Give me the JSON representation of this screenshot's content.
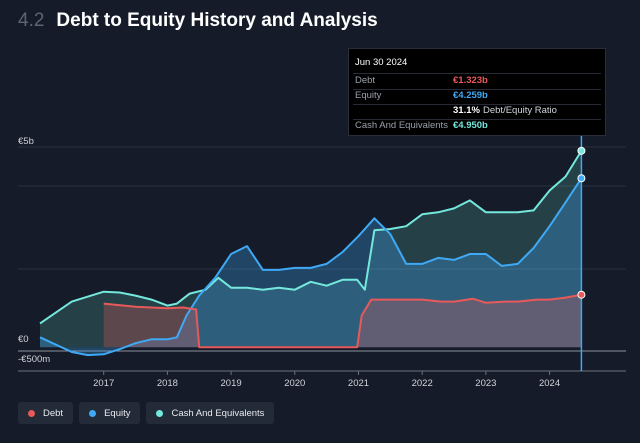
{
  "header": {
    "section_number": "4.2",
    "title": "Debt to Equity History and Analysis"
  },
  "tooltip": {
    "date": "Jun 30 2024",
    "rows": [
      {
        "label": "Debt",
        "value": "€1.323b",
        "color": "#e8595a"
      },
      {
        "label": "Equity",
        "value": "€4.259b",
        "color": "#3fa9f5"
      },
      {
        "label": "",
        "value": "31.1%",
        "suffix": "Debt/Equity Ratio",
        "color": "#ffffff"
      },
      {
        "label": "Cash And Equivalents",
        "value": "€4.950b",
        "color": "#74e8dc"
      }
    ]
  },
  "legend": [
    {
      "label": "Debt",
      "color": "#e8595a"
    },
    {
      "label": "Equity",
      "color": "#3fa9f5"
    },
    {
      "label": "Cash And Equivalents",
      "color": "#74e8dc"
    }
  ],
  "chart_data": {
    "type": "area",
    "y_tick_labels": [
      "€5b",
      "€0",
      "-€500m"
    ],
    "y_ticks": [
      5,
      0,
      -0.5
    ],
    "ylim": [
      -0.6,
      5.4
    ],
    "xlim": [
      2016,
      2025.2
    ],
    "x_tick_labels": [
      "2017",
      "2018",
      "2019",
      "2020",
      "2021",
      "2022",
      "2023",
      "2024"
    ],
    "x_ticks": [
      2017,
      2018,
      2019,
      2020,
      2021,
      2022,
      2023,
      2024
    ],
    "grid": true,
    "legend_position": "bottom-left",
    "highlight_x": 2024.5,
    "series": [
      {
        "name": "Debt",
        "color": "#e8595a",
        "x": [
          2017,
          2017.5,
          2018,
          2018.25,
          2018.45,
          2018.5,
          2019,
          2020,
          2020.98,
          2021.05,
          2021.2,
          2021.5,
          2022,
          2022.3,
          2022.5,
          2022.8,
          2023,
          2023.3,
          2023.5,
          2023.8,
          2024,
          2024.25,
          2024.5
        ],
        "y": [
          1.1,
          1.02,
          0.98,
          1.0,
          0.95,
          0.0,
          0.0,
          0.0,
          0.0,
          0.8,
          1.2,
          1.2,
          1.2,
          1.15,
          1.15,
          1.22,
          1.12,
          1.15,
          1.15,
          1.2,
          1.2,
          1.25,
          1.323
        ]
      },
      {
        "name": "Equity",
        "color": "#3fa9f5",
        "x": [
          2016,
          2016.5,
          2016.75,
          2017,
          2017.25,
          2017.5,
          2017.75,
          2018,
          2018.15,
          2018.3,
          2018.5,
          2018.75,
          2019,
          2019.25,
          2019.5,
          2019.75,
          2020,
          2020.25,
          2020.5,
          2020.75,
          2021,
          2021.25,
          2021.5,
          2021.75,
          2022,
          2022.25,
          2022.5,
          2022.75,
          2023,
          2023.25,
          2023.5,
          2023.75,
          2024,
          2024.25,
          2024.5
        ],
        "y": [
          0.25,
          -0.12,
          -0.2,
          -0.18,
          -0.05,
          0.1,
          0.2,
          0.2,
          0.25,
          0.8,
          1.3,
          1.75,
          2.35,
          2.55,
          1.95,
          1.95,
          2.0,
          2.0,
          2.1,
          2.4,
          2.8,
          3.25,
          2.85,
          2.1,
          2.1,
          2.25,
          2.2,
          2.35,
          2.35,
          2.05,
          2.1,
          2.5,
          3.05,
          3.65,
          4.259
        ]
      },
      {
        "name": "Cash And Equivalents",
        "color": "#74e8dc",
        "x": [
          2016,
          2016.5,
          2017,
          2017.25,
          2017.5,
          2017.75,
          2018,
          2018.15,
          2018.35,
          2018.6,
          2018.8,
          2019,
          2019.25,
          2019.5,
          2019.75,
          2020,
          2020.25,
          2020.5,
          2020.75,
          2020.98,
          2021.1,
          2021.25,
          2021.5,
          2021.75,
          2022,
          2022.25,
          2022.5,
          2022.75,
          2023,
          2023.25,
          2023.5,
          2023.75,
          2024,
          2024.25,
          2024.5
        ],
        "y": [
          0.6,
          1.15,
          1.4,
          1.38,
          1.3,
          1.2,
          1.05,
          1.1,
          1.35,
          1.45,
          1.75,
          1.5,
          1.5,
          1.45,
          1.5,
          1.45,
          1.65,
          1.55,
          1.7,
          1.7,
          1.45,
          2.95,
          2.98,
          3.05,
          3.35,
          3.4,
          3.5,
          3.7,
          3.4,
          3.4,
          3.4,
          3.45,
          3.95,
          4.3,
          4.95
        ]
      }
    ]
  }
}
